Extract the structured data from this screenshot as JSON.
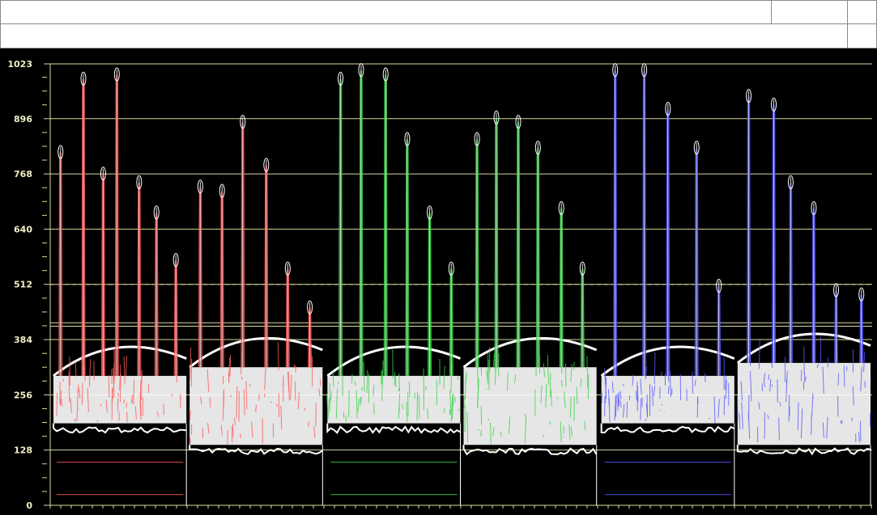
{
  "header": {
    "row1_cells": [
      "",
      "",
      ""
    ],
    "row2_cells": [
      "",
      ""
    ]
  },
  "chart_data": {
    "type": "scatter",
    "title": "",
    "xlabel": "",
    "ylabel": "",
    "ylim": [
      0,
      1023
    ],
    "y_ticks": [
      0,
      128,
      256,
      384,
      512,
      640,
      768,
      896,
      1023
    ],
    "reference_lines": [
      {
        "y": 512,
        "style": "dashed"
      },
      {
        "y": 415,
        "style": "solid"
      },
      {
        "y": 423,
        "style": "solid"
      }
    ],
    "grid": true,
    "description_mode": "RGB parade waveform",
    "colors": {
      "background": "#000000",
      "grid": "#d8d8a0",
      "tick_label": "#f0f0c8",
      "red": "#ff5a5a",
      "green": "#3cd24a",
      "blue": "#5a5aff"
    },
    "series": [
      {
        "name": "R",
        "color": "#ff5a5a",
        "shots": [
          {
            "floor": 190,
            "body_top": 300,
            "peaks": [
              830,
              1000,
              780,
              1010,
              760,
              690,
              580
            ]
          },
          {
            "floor": 140,
            "body_top": 320,
            "peaks": [
              750,
              740,
              900,
              800,
              560,
              470
            ]
          }
        ],
        "trace_lines": [
          100,
          25
        ]
      },
      {
        "name": "G",
        "color": "#3cd24a",
        "shots": [
          {
            "floor": 190,
            "body_top": 300,
            "peaks": [
              1000,
              1020,
              1010,
              860,
              690,
              560
            ]
          },
          {
            "floor": 140,
            "body_top": 320,
            "peaks": [
              860,
              910,
              900,
              840,
              700,
              560
            ]
          }
        ],
        "trace_lines": [
          100,
          25
        ]
      },
      {
        "name": "B",
        "color": "#5a5aff",
        "shots": [
          {
            "floor": 190,
            "body_top": 300,
            "peaks": [
              1020,
              1020,
              930,
              840,
              520
            ]
          },
          {
            "floor": 140,
            "body_top": 330,
            "peaks": [
              960,
              940,
              760,
              700,
              510,
              500
            ]
          }
        ],
        "trace_lines": [
          100,
          25
        ]
      }
    ]
  }
}
